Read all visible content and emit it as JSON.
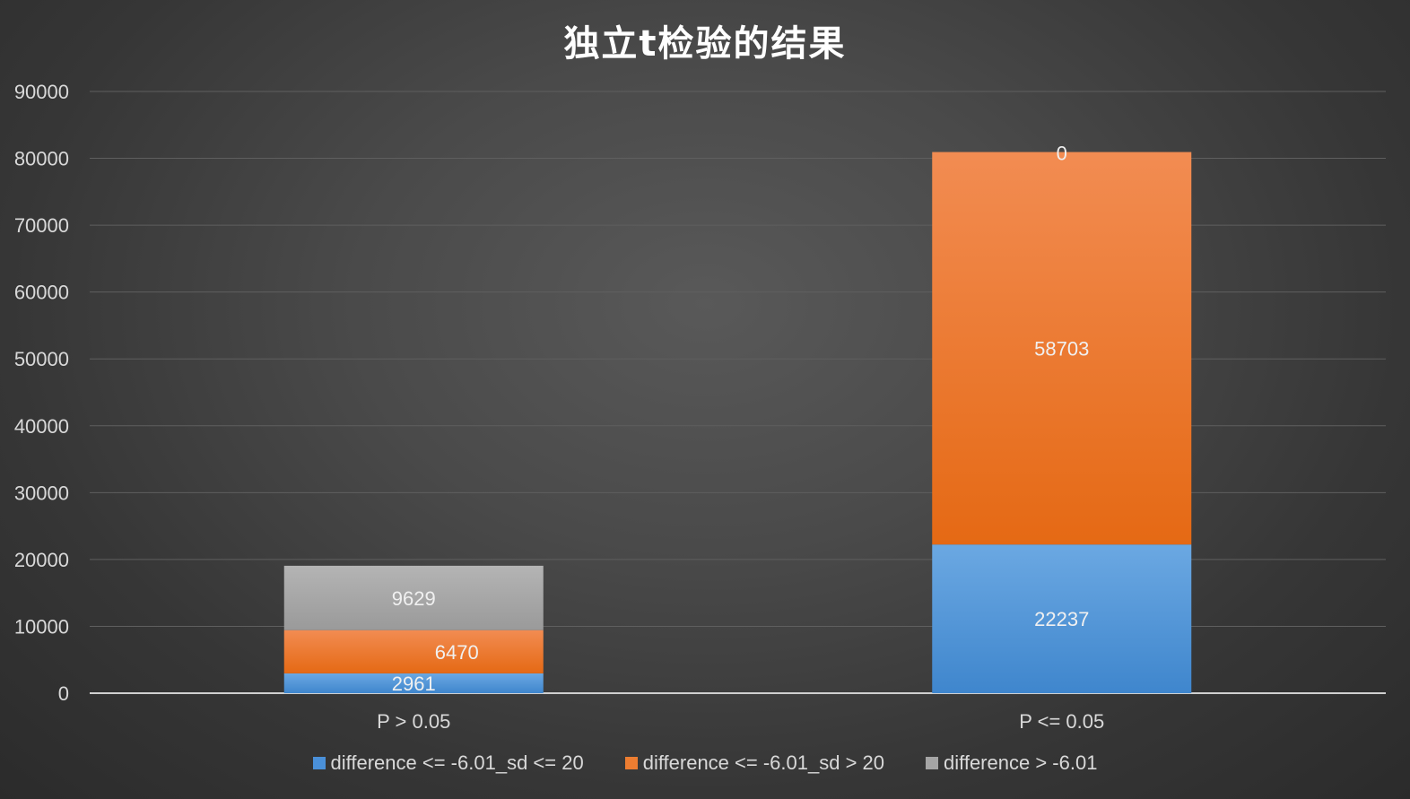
{
  "chart_data": {
    "type": "bar",
    "stacked": true,
    "title": "独立t检验的结果",
    "xlabel": "",
    "ylabel": "",
    "categories": [
      "P > 0.05",
      "P <= 0.05"
    ],
    "series": [
      {
        "name": "difference <= -6.01_sd <= 20",
        "values": [
          2961,
          22237
        ],
        "color": "#4a90d9"
      },
      {
        "name": "difference <= -6.01_sd > 20",
        "values": [
          6470,
          58703
        ],
        "color": "#ed7d31"
      },
      {
        "name": "difference > -6.01",
        "values": [
          9629,
          0
        ],
        "color": "#a5a5a5"
      }
    ],
    "data_labels": [
      [
        "2961",
        "22237"
      ],
      [
        "6470",
        "58703"
      ],
      [
        "9629",
        "0"
      ]
    ],
    "ylim": [
      0,
      90000
    ],
    "yticks": [
      "0",
      "10000",
      "20000",
      "30000",
      "40000",
      "50000",
      "60000",
      "70000",
      "80000",
      "90000"
    ],
    "grid": true,
    "legend_position": "bottom"
  }
}
